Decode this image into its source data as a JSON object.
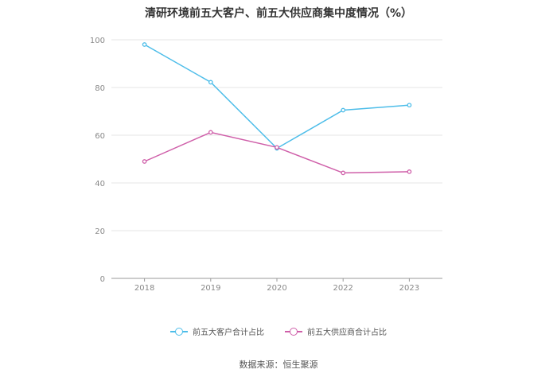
{
  "title": "清研环境前五大客户、前五大供应商集中度情况（%）",
  "source": "数据来源：恒生聚源",
  "chart_data": {
    "type": "line",
    "categories": [
      "2018",
      "2019",
      "2020",
      "2022",
      "2023"
    ],
    "ylim": [
      0,
      100
    ],
    "yticks": [
      0,
      20,
      40,
      60,
      80,
      100
    ],
    "grid": true,
    "legend_position": "bottom",
    "series": [
      {
        "name": "前五大客户合计占比",
        "color": "#4dbde9",
        "values": [
          98.0,
          82.2,
          54.5,
          70.5,
          72.6
        ]
      },
      {
        "name": "前五大供应商合计占比",
        "color": "#cf5fa9",
        "values": [
          49.0,
          61.2,
          54.9,
          44.2,
          44.7
        ]
      }
    ]
  }
}
